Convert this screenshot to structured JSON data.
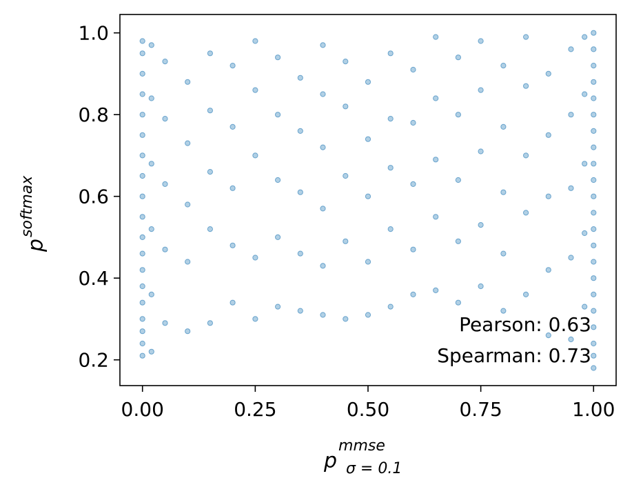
{
  "chart_data": {
    "type": "scatter",
    "title": "",
    "xlabel": {
      "base": "p",
      "sup": "mmse",
      "sub": "σ = 0.1"
    },
    "ylabel": {
      "base": "p",
      "sup": "softmax"
    },
    "xlim": [
      -0.05,
      1.05
    ],
    "ylim": [
      0.137,
      1.045
    ],
    "xticks": [
      0.0,
      0.25,
      0.5,
      0.75,
      1.0
    ],
    "xtick_labels": [
      "0.00",
      "0.25",
      "0.50",
      "0.75",
      "1.00"
    ],
    "yticks": [
      0.2,
      0.4,
      0.6,
      0.8,
      1.0
    ],
    "ytick_labels": [
      "0.2",
      "0.4",
      "0.6",
      "0.8",
      "1.0"
    ],
    "grid": false,
    "legend": "none",
    "color": "#1f77b4",
    "marker_alpha": 0.35,
    "annotations": [
      "Pearson: 0.63",
      "Spearman: 0.73"
    ],
    "series": [
      {
        "points": [
          [
            0.0,
            0.21
          ],
          [
            0.0,
            0.24
          ],
          [
            0.0,
            0.27
          ],
          [
            0.0,
            0.3
          ],
          [
            0.0,
            0.34
          ],
          [
            0.0,
            0.38
          ],
          [
            0.0,
            0.42
          ],
          [
            0.0,
            0.46
          ],
          [
            0.0,
            0.5
          ],
          [
            0.0,
            0.55
          ],
          [
            0.0,
            0.6
          ],
          [
            0.0,
            0.65
          ],
          [
            0.0,
            0.7
          ],
          [
            0.0,
            0.75
          ],
          [
            0.0,
            0.8
          ],
          [
            0.0,
            0.85
          ],
          [
            0.0,
            0.9
          ],
          [
            0.0,
            0.95
          ],
          [
            0.0,
            0.98
          ],
          [
            0.02,
            0.22
          ],
          [
            0.02,
            0.36
          ],
          [
            0.02,
            0.52
          ],
          [
            0.02,
            0.68
          ],
          [
            0.02,
            0.84
          ],
          [
            0.02,
            0.97
          ],
          [
            0.05,
            0.29
          ],
          [
            0.05,
            0.47
          ],
          [
            0.05,
            0.63
          ],
          [
            0.05,
            0.79
          ],
          [
            0.05,
            0.93
          ],
          [
            0.1,
            0.27
          ],
          [
            0.1,
            0.44
          ],
          [
            0.1,
            0.58
          ],
          [
            0.1,
            0.73
          ],
          [
            0.1,
            0.88
          ],
          [
            0.15,
            0.29
          ],
          [
            0.15,
            0.52
          ],
          [
            0.15,
            0.66
          ],
          [
            0.15,
            0.81
          ],
          [
            0.15,
            0.95
          ],
          [
            0.2,
            0.34
          ],
          [
            0.2,
            0.48
          ],
          [
            0.2,
            0.62
          ],
          [
            0.2,
            0.77
          ],
          [
            0.2,
            0.92
          ],
          [
            0.25,
            0.3
          ],
          [
            0.25,
            0.45
          ],
          [
            0.25,
            0.7
          ],
          [
            0.25,
            0.86
          ],
          [
            0.25,
            0.98
          ],
          [
            0.3,
            0.33
          ],
          [
            0.3,
            0.5
          ],
          [
            0.3,
            0.64
          ],
          [
            0.3,
            0.8
          ],
          [
            0.3,
            0.94
          ],
          [
            0.35,
            0.32
          ],
          [
            0.35,
            0.46
          ],
          [
            0.35,
            0.61
          ],
          [
            0.35,
            0.76
          ],
          [
            0.35,
            0.89
          ],
          [
            0.4,
            0.31
          ],
          [
            0.4,
            0.43
          ],
          [
            0.4,
            0.57
          ],
          [
            0.4,
            0.72
          ],
          [
            0.4,
            0.85
          ],
          [
            0.4,
            0.97
          ],
          [
            0.45,
            0.3
          ],
          [
            0.45,
            0.49
          ],
          [
            0.45,
            0.65
          ],
          [
            0.45,
            0.82
          ],
          [
            0.45,
            0.93
          ],
          [
            0.5,
            0.31
          ],
          [
            0.5,
            0.44
          ],
          [
            0.5,
            0.6
          ],
          [
            0.5,
            0.74
          ],
          [
            0.5,
            0.88
          ],
          [
            0.55,
            0.33
          ],
          [
            0.55,
            0.52
          ],
          [
            0.55,
            0.67
          ],
          [
            0.55,
            0.79
          ],
          [
            0.55,
            0.95
          ],
          [
            0.6,
            0.36
          ],
          [
            0.6,
            0.47
          ],
          [
            0.6,
            0.63
          ],
          [
            0.6,
            0.78
          ],
          [
            0.6,
            0.91
          ],
          [
            0.65,
            0.37
          ],
          [
            0.65,
            0.55
          ],
          [
            0.65,
            0.69
          ],
          [
            0.65,
            0.84
          ],
          [
            0.65,
            0.99
          ],
          [
            0.7,
            0.34
          ],
          [
            0.7,
            0.49
          ],
          [
            0.7,
            0.64
          ],
          [
            0.7,
            0.8
          ],
          [
            0.7,
            0.94
          ],
          [
            0.75,
            0.38
          ],
          [
            0.75,
            0.53
          ],
          [
            0.75,
            0.71
          ],
          [
            0.75,
            0.86
          ],
          [
            0.75,
            0.98
          ],
          [
            0.8,
            0.32
          ],
          [
            0.8,
            0.46
          ],
          [
            0.8,
            0.61
          ],
          [
            0.8,
            0.77
          ],
          [
            0.8,
            0.92
          ],
          [
            0.85,
            0.36
          ],
          [
            0.85,
            0.56
          ],
          [
            0.85,
            0.7
          ],
          [
            0.85,
            0.87
          ],
          [
            0.85,
            0.99
          ],
          [
            0.9,
            0.26
          ],
          [
            0.9,
            0.42
          ],
          [
            0.9,
            0.6
          ],
          [
            0.9,
            0.75
          ],
          [
            0.9,
            0.9
          ],
          [
            0.95,
            0.25
          ],
          [
            0.95,
            0.45
          ],
          [
            0.95,
            0.62
          ],
          [
            0.95,
            0.8
          ],
          [
            0.95,
            0.96
          ],
          [
            0.98,
            0.33
          ],
          [
            0.98,
            0.51
          ],
          [
            0.98,
            0.68
          ],
          [
            0.98,
            0.85
          ],
          [
            0.98,
            0.99
          ],
          [
            1.0,
            0.18
          ],
          [
            1.0,
            0.21
          ],
          [
            1.0,
            0.24
          ],
          [
            1.0,
            0.28
          ],
          [
            1.0,
            0.32
          ],
          [
            1.0,
            0.36
          ],
          [
            1.0,
            0.4
          ],
          [
            1.0,
            0.44
          ],
          [
            1.0,
            0.48
          ],
          [
            1.0,
            0.52
          ],
          [
            1.0,
            0.56
          ],
          [
            1.0,
            0.6
          ],
          [
            1.0,
            0.64
          ],
          [
            1.0,
            0.68
          ],
          [
            1.0,
            0.72
          ],
          [
            1.0,
            0.76
          ],
          [
            1.0,
            0.8
          ],
          [
            1.0,
            0.84
          ],
          [
            1.0,
            0.88
          ],
          [
            1.0,
            0.92
          ],
          [
            1.0,
            0.96
          ],
          [
            1.0,
            1.0
          ]
        ]
      }
    ]
  }
}
